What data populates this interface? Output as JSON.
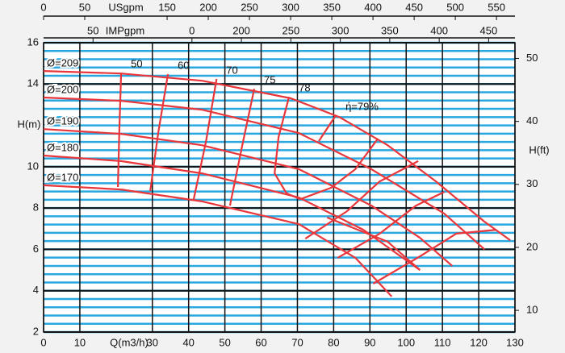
{
  "chart_data": {
    "type": "pump-curve",
    "x_label": "Q(m3/h)",
    "y_label": "H(m)",
    "y2_label": "H(ft)",
    "xlim": [
      0,
      130
    ],
    "xticks": [
      0,
      10,
      30,
      40,
      50,
      60,
      70,
      80,
      90,
      100,
      110,
      120,
      130
    ],
    "ylim": [
      2,
      16
    ],
    "yticks": [
      2,
      4,
      6,
      8,
      10,
      14,
      16
    ],
    "y2lim": [
      6.56,
      52.49
    ],
    "y2ticks": [
      10,
      20,
      30,
      40,
      50
    ],
    "grid": true,
    "grid_color": "#111111",
    "minor_grid": {
      "step": 0.4,
      "color": "#2aa7df"
    },
    "top_axes": [
      {
        "label": "USgpm",
        "lim": [
          0,
          572.4
        ],
        "ticks": [
          0,
          50,
          150,
          200,
          250,
          300,
          350,
          400,
          450,
          500,
          550
        ]
      },
      {
        "label": "IMPgpm",
        "lim": [
          0,
          476.6
        ],
        "ticks": [
          50,
          {
            "value": 150,
            "label": "0"
          },
          200,
          250,
          300,
          350,
          400,
          450
        ]
      }
    ],
    "curve_color": "#e8363b",
    "series": [
      {
        "name": "Ø=209",
        "x": [
          0,
          21.4,
          43.7,
          68.2,
          81.5,
          94.9,
          108.2,
          121.6,
          128.7
        ],
        "values": [
          14.63,
          14.51,
          14.16,
          13.31,
          12.41,
          11.04,
          9.29,
          7.34,
          6.44
        ]
      },
      {
        "name": "Ø=200",
        "x": [
          0,
          21.4,
          43.7,
          70.4,
          90.4,
          110.5,
          121.6
        ],
        "values": [
          13.35,
          13.19,
          12.76,
          11.63,
          9.88,
          7.73,
          6.0
        ]
      },
      {
        "name": "Ø=190",
        "x": [
          0,
          21.4,
          43.7,
          70.4,
          90.4,
          103.8,
          112.7
        ],
        "values": [
          11.82,
          11.59,
          11.04,
          9.88,
          8.12,
          6.56,
          5.2
        ]
      },
      {
        "name": "Ø=180",
        "x": [
          0,
          21.4,
          43.7,
          70.4,
          88.2,
          103.8
        ],
        "values": [
          10.54,
          10.27,
          9.68,
          8.51,
          6.95,
          5.0
        ]
      },
      {
        "name": "Ø=170",
        "x": [
          0,
          21.4,
          43.7,
          70.4,
          86.0,
          96.0
        ],
        "values": [
          9.1,
          8.9,
          8.32,
          7.22,
          5.59,
          3.72
        ]
      }
    ],
    "efficiency": [
      {
        "name": "50",
        "x": [
          21.4,
          20.9,
          20.5
        ],
        "values": [
          14.55,
          11.82,
          9.02
        ]
      },
      {
        "name": "60",
        "x": [
          34.3,
          31.6,
          29.4
        ],
        "values": [
          14.48,
          11.63,
          8.82
        ]
      },
      {
        "name": "70",
        "x": [
          47.7,
          44.8,
          41.4
        ],
        "values": [
          14.24,
          11.24,
          8.43
        ]
      },
      {
        "name": "75",
        "x": [
          58.1,
          54.8,
          51.4
        ],
        "values": [
          13.77,
          11.04,
          8.12
        ]
      },
      {
        "name": "78",
        "x": [
          67.7,
          64.8,
          63.7,
          67.0,
          70.8
        ],
        "values": [
          13.38,
          11.43,
          9.68,
          8.71,
          8.43
        ]
      },
      {
        "name": "ή=79%",
        "x": [
          80.6,
          75.9
        ],
        "values": [
          12.49,
          11.24
        ]
      }
    ],
    "extra_lines": [
      {
        "x": [
          70.8,
          79.3,
          86.0,
          92.2
        ],
        "values": [
          8.43,
          8.98,
          9.88,
          11.36
        ]
      },
      {
        "x": [
          72.2,
          83.7,
          92.7,
          103.3
        ],
        "values": [
          6.52,
          7.85,
          9.29,
          10.27
        ]
      },
      {
        "x": [
          81.1,
          92.7,
          102.7,
          110.5
        ],
        "values": [
          5.59,
          6.76,
          8.12,
          8.78
        ]
      },
      {
        "x": [
          90.9,
          103.8,
          113.8,
          124.9
        ],
        "values": [
          4.34,
          5.66,
          6.76,
          6.95
        ]
      },
      {
        "x": [
          78.2,
          94.9,
          103.8
        ],
        "values": [
          7.54,
          6.37,
          5.0
        ]
      }
    ]
  }
}
